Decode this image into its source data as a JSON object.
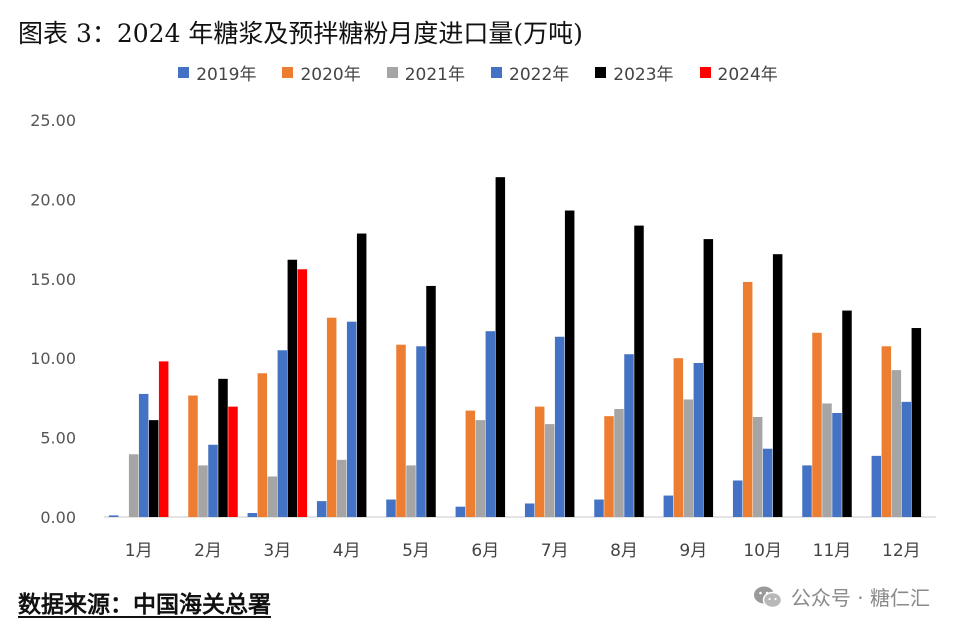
{
  "title": "图表 3：2024 年糖浆及预拌糖粉月度进口量(万吨)",
  "source": "数据来源：中国海关总署",
  "watermark": {
    "text": "公众号 · 糖仁汇",
    "icon": "wechat-icon"
  },
  "chart_data": {
    "type": "bar",
    "title": "图表 3：2024 年糖浆及预拌糖粉月度进口量(万吨)",
    "xlabel": "",
    "ylabel": "",
    "categories": [
      "1月",
      "2月",
      "3月",
      "4月",
      "5月",
      "6月",
      "7月",
      "8月",
      "9月",
      "10月",
      "11月",
      "12月"
    ],
    "yticks": [
      "0.00",
      "5.00",
      "10.00",
      "15.00",
      "20.00",
      "25.00"
    ],
    "ylim": [
      0,
      25
    ],
    "grid": false,
    "legend_position": "top",
    "series": [
      {
        "name": "2019年",
        "color": "#4472C4",
        "values": [
          0.1,
          0.0,
          0.25,
          1.0,
          1.1,
          0.65,
          0.85,
          1.1,
          1.35,
          2.3,
          3.25,
          3.85
        ]
      },
      {
        "name": "2020年",
        "color": "#ED7D31",
        "values": [
          0.0,
          7.65,
          9.05,
          12.55,
          10.85,
          6.7,
          6.95,
          6.35,
          10.0,
          14.8,
          11.6,
          10.75
        ]
      },
      {
        "name": "2021年",
        "color": "#A5A5A5",
        "values": [
          3.95,
          3.25,
          2.55,
          3.6,
          3.25,
          6.1,
          5.85,
          6.8,
          7.4,
          6.3,
          7.15,
          9.25
        ]
      },
      {
        "name": "2022年",
        "color": "#4472C4",
        "values": [
          7.75,
          4.55,
          10.5,
          12.3,
          10.75,
          11.7,
          11.35,
          10.25,
          9.7,
          4.3,
          6.55,
          7.25
        ]
      },
      {
        "name": "2023年",
        "color": "#000000",
        "values": [
          6.1,
          8.7,
          16.2,
          17.85,
          14.55,
          21.4,
          19.3,
          18.35,
          17.5,
          16.55,
          13.0,
          11.9
        ]
      },
      {
        "name": "2024年",
        "color": "#FF0000",
        "values": [
          9.8,
          6.95,
          15.6,
          null,
          null,
          null,
          null,
          null,
          null,
          null,
          null,
          null
        ]
      }
    ]
  }
}
